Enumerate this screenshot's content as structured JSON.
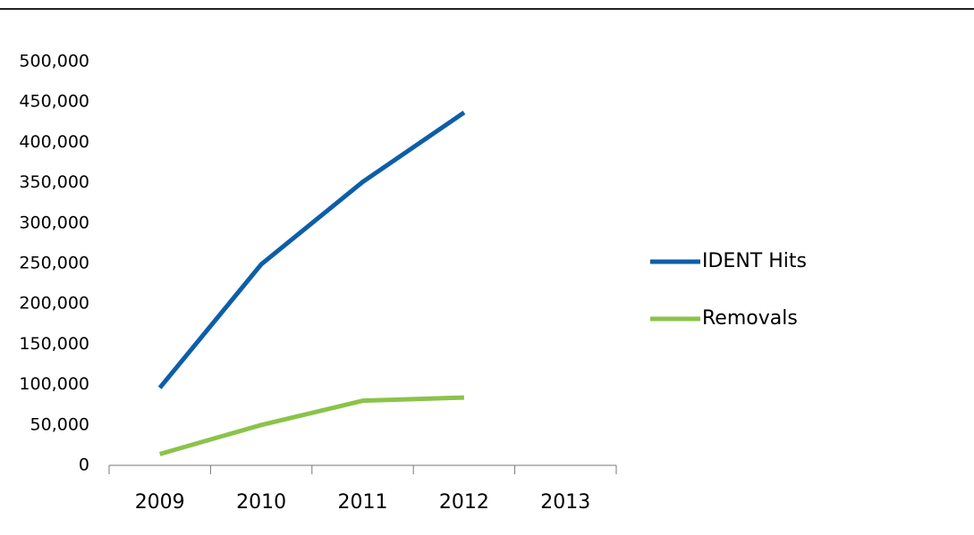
{
  "chart_data": {
    "type": "line",
    "categories": [
      "2009",
      "2010",
      "2011",
      "2012",
      "2013"
    ],
    "series": [
      {
        "name": "IDENT Hits",
        "color": "#0d5ea8",
        "values": [
          96000,
          249000,
          351000,
          437000,
          null
        ]
      },
      {
        "name": "Removals",
        "color": "#8bc34a",
        "values": [
          14000,
          50000,
          80000,
          84000,
          null
        ]
      }
    ],
    "ylim": [
      0,
      500000
    ],
    "yticks": [
      0,
      {
        "value": 50000,
        "label": "50,000"
      },
      {
        "value": 100000,
        "label": "100,000"
      },
      {
        "value": 150000,
        "label": "150,000"
      },
      {
        "value": 200000,
        "label": "200,000"
      },
      {
        "value": 250000,
        "label": "250,000"
      },
      {
        "value": 300000,
        "label": "300,000"
      },
      {
        "value": 350000,
        "label": "350,000"
      },
      {
        "value": 400000,
        "label": "400,000"
      },
      {
        "value": 450000,
        "label": "450,000"
      },
      {
        "value": 500000,
        "label": "500,000"
      }
    ],
    "grid": false,
    "legend": "right"
  }
}
